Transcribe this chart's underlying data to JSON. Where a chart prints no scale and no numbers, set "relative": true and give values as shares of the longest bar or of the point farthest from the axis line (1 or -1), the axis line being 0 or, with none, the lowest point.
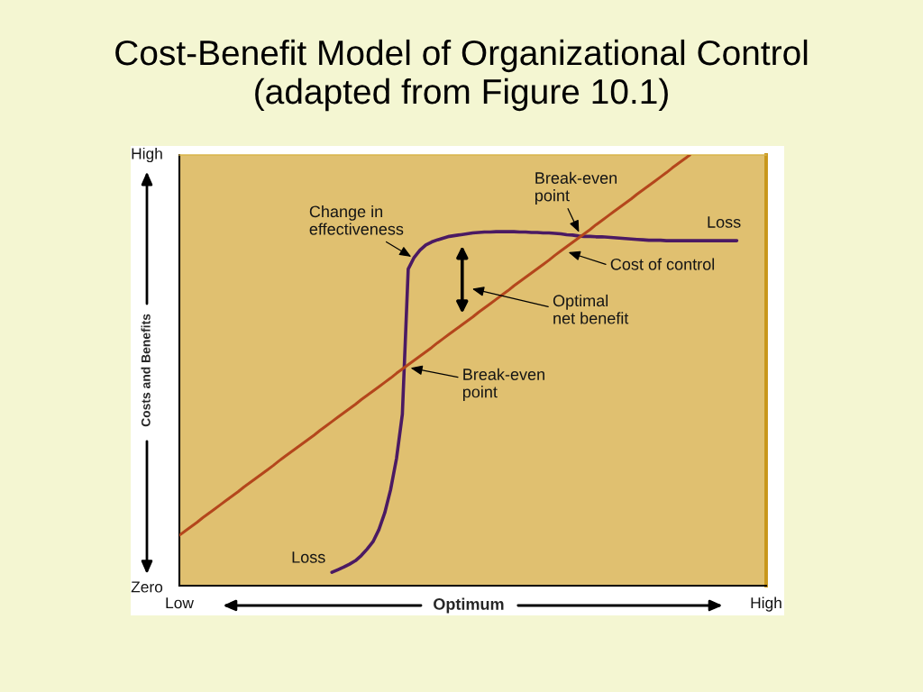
{
  "chart_data": {
    "type": "line",
    "title": "Cost-Benefit Model of Organizational Control",
    "subtitle": "(adapted from Figure 10.1)",
    "xlabel": "Optimum",
    "ylabel": "Costs and Benefits",
    "relative": true,
    "categories": [
      "Low",
      null,
      null,
      null,
      null,
      null,
      null,
      null,
      null,
      null,
      null,
      null,
      null,
      null,
      null,
      null,
      null,
      null,
      null,
      null,
      null,
      null,
      null,
      null,
      null,
      null,
      null,
      null,
      null,
      null,
      null,
      null,
      null,
      null,
      null,
      null,
      null,
      null,
      null,
      null,
      null,
      null,
      null,
      null,
      null,
      null,
      null,
      null,
      null,
      null,
      null,
      null,
      null,
      null,
      null,
      null,
      null,
      null,
      null,
      null,
      null,
      null,
      null,
      null,
      null,
      null,
      null,
      null,
      null,
      null,
      null,
      null,
      null,
      null,
      null,
      null,
      null,
      null,
      null,
      null,
      null,
      null,
      null,
      null,
      null,
      null,
      null,
      null,
      null,
      null,
      null,
      null,
      null,
      null,
      null,
      null,
      null,
      null,
      null,
      null,
      "High"
    ],
    "series": [
      {
        "color": "#4b1a63",
        "values": [
          null,
          null,
          null,
          null,
          null,
          null,
          null,
          null,
          null,
          null,
          null,
          null,
          null,
          null,
          null,
          null,
          null,
          null,
          null,
          null,
          null,
          null,
          null,
          null,
          null,
          null,
          0.031,
          0.037,
          0.043,
          0.05,
          0.058,
          0.07,
          0.085,
          0.102,
          0.13,
          0.169,
          0.223,
          0.295,
          0.398,
          0.735,
          0.762,
          0.779,
          0.791,
          0.798,
          0.803,
          0.807,
          0.811,
          0.813,
          0.815,
          0.817,
          0.819,
          0.82,
          0.821,
          0.821,
          0.822,
          0.822,
          0.822,
          0.822,
          0.821,
          0.821,
          0.82,
          0.82,
          0.819,
          0.819,
          0.818,
          0.817,
          0.815,
          0.814,
          0.812,
          0.811,
          0.811,
          0.81,
          0.81,
          0.809,
          0.808,
          0.807,
          0.806,
          0.805,
          0.804,
          0.803,
          0.802,
          0.802,
          0.802,
          0.801,
          0.801,
          0.801,
          0.801,
          0.801,
          0.801,
          0.801,
          0.801,
          0.801,
          0.801,
          0.801,
          0.801,
          0.801,
          null,
          null,
          null,
          null,
          null
        ]
      },
      {
        "color": "#b4461c",
        "values": [
          0.117,
          0.127,
          0.137,
          0.147,
          0.158,
          0.168,
          0.178,
          0.188,
          0.198,
          0.208,
          0.218,
          0.229,
          0.239,
          0.249,
          0.259,
          0.269,
          0.279,
          0.29,
          0.3,
          0.31,
          0.32,
          0.33,
          0.34,
          0.35,
          0.361,
          0.371,
          0.381,
          0.391,
          0.401,
          0.411,
          0.421,
          0.432,
          0.442,
          0.452,
          0.462,
          0.472,
          0.482,
          0.493,
          0.503,
          0.513,
          0.523,
          0.533,
          0.543,
          0.553,
          0.564,
          0.574,
          0.584,
          0.594,
          0.604,
          0.614,
          0.624,
          0.635,
          0.645,
          0.655,
          0.665,
          0.675,
          0.685,
          0.696,
          0.706,
          0.716,
          0.726,
          0.736,
          0.746,
          0.756,
          0.767,
          0.777,
          0.787,
          0.797,
          0.807,
          0.817,
          0.827,
          0.838,
          0.848,
          0.858,
          0.868,
          0.878,
          0.888,
          0.898,
          0.909,
          0.919,
          0.929,
          0.939,
          0.949,
          0.959,
          0.97,
          0.98,
          0.99,
          1.0,
          null,
          null,
          null,
          null,
          null,
          null,
          null,
          null,
          null,
          null,
          null,
          null,
          null
        ]
      }
    ],
    "annotations": [
      "High",
      "Break-even\npoint",
      "Change in\neffectiveness",
      "Loss",
      "Cost of control",
      "Optimal\nnet benefit",
      "Break-even\npoint",
      "Loss",
      "Zero"
    ]
  }
}
